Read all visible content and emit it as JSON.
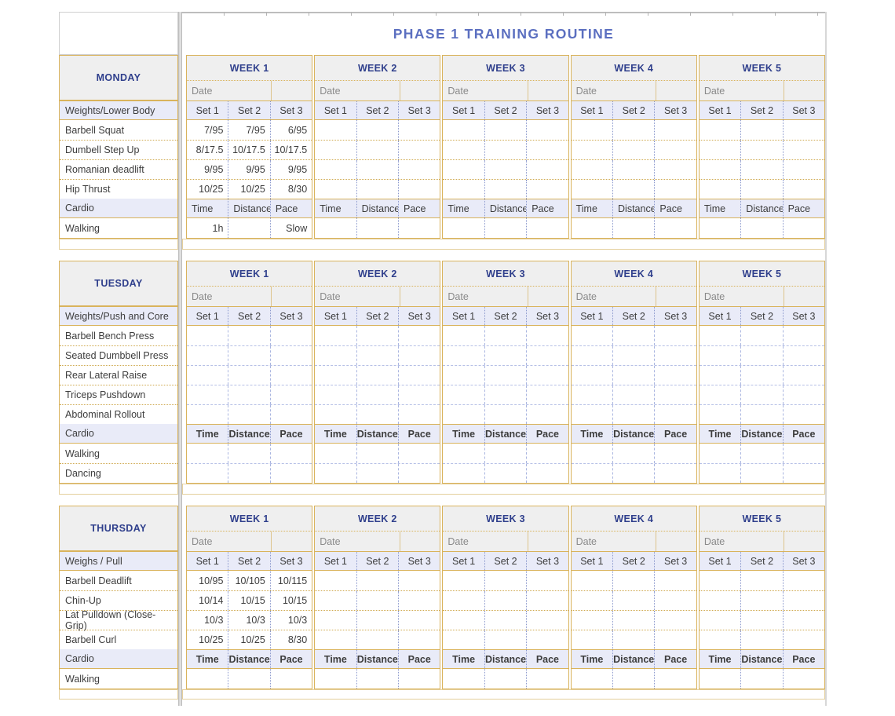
{
  "title": "PHASE 1 TRAINING ROUTINE",
  "week_labels": [
    "WEEK 1",
    "WEEK 2",
    "WEEK 3",
    "WEEK 4",
    "WEEK 5"
  ],
  "date_label": "Date",
  "set_headers": [
    "Set 1",
    "Set 2",
    "Set 3"
  ],
  "cardio_headers": [
    "Time",
    "Distance",
    "Pace"
  ],
  "colors": {
    "border_gold": "#d9b35c",
    "heading_navy": "#2f3f8c",
    "title_blue": "#5b6fc0",
    "header_gray": "#efefef",
    "header_lavender": "#e9ebf8"
  },
  "sections": [
    {
      "day": "MONDAY",
      "weights_header": "Weights/Lower Body",
      "cardio_label": "Cardio",
      "cardio_bold": false,
      "grid_style": "gold",
      "weight_rows": [
        {
          "label": "Barbell Squat",
          "values": {
            "week1": [
              "7/95",
              "7/95",
              "6/95"
            ]
          }
        },
        {
          "label": "Dumbell Step Up",
          "values": {
            "week1": [
              "8/17.5",
              "10/17.5",
              "10/17.5"
            ]
          }
        },
        {
          "label": "Romanian deadlift",
          "values": {
            "week1": [
              "9/95",
              "9/95",
              "9/95"
            ]
          }
        },
        {
          "label": "Hip Thrust",
          "values": {
            "week1": [
              "10/25",
              "10/25",
              "8/30"
            ]
          }
        }
      ],
      "cardio_rows": [
        {
          "label": "Walking",
          "values": {
            "week1": [
              "1h",
              "",
              "Slow"
            ]
          }
        }
      ]
    },
    {
      "day": "TUESDAY",
      "weights_header": "Weights/Push and Core",
      "cardio_label": "Cardio",
      "cardio_bold": true,
      "grid_style": "blue",
      "weight_rows": [
        {
          "label": "Barbell Bench Press",
          "values": {
            "week1": [
              "",
              "",
              ""
            ]
          }
        },
        {
          "label": "Seated Dumbbell Press",
          "values": {
            "week1": [
              "",
              "",
              ""
            ]
          }
        },
        {
          "label": "Rear Lateral Raise",
          "values": {
            "week1": [
              "",
              "",
              ""
            ]
          }
        },
        {
          "label": "Triceps Pushdown",
          "values": {
            "week1": [
              "",
              "",
              ""
            ]
          }
        },
        {
          "label": "Abdominal Rollout",
          "values": {
            "week1": [
              "",
              "",
              ""
            ]
          }
        }
      ],
      "cardio_rows": [
        {
          "label": "Walking",
          "values": {
            "week1": [
              "",
              "",
              ""
            ]
          }
        },
        {
          "label": "Dancing",
          "values": {
            "week1": [
              "",
              "",
              ""
            ]
          }
        }
      ]
    },
    {
      "day": "THURSDAY",
      "weights_header": "Weighs / Pull",
      "cardio_label": "Cardio",
      "cardio_bold": true,
      "grid_style": "gold",
      "weight_rows": [
        {
          "label": "Barbell Deadlift",
          "values": {
            "week1": [
              "10/95",
              "10/105",
              "10/115"
            ]
          }
        },
        {
          "label": "Chin-Up",
          "values": {
            "week1": [
              "10/14",
              "10/15",
              "10/15"
            ]
          }
        },
        {
          "label": "Lat Pulldown (Close-Grip)",
          "values": {
            "week1": [
              "10/3",
              "10/3",
              "10/3"
            ]
          }
        },
        {
          "label": "Barbell Curl",
          "values": {
            "week1": [
              "10/25",
              "10/25",
              "8/30"
            ]
          }
        }
      ],
      "cardio_rows": [
        {
          "label": "Walking",
          "values": {
            "week1": [
              "",
              "",
              ""
            ]
          }
        }
      ]
    }
  ]
}
